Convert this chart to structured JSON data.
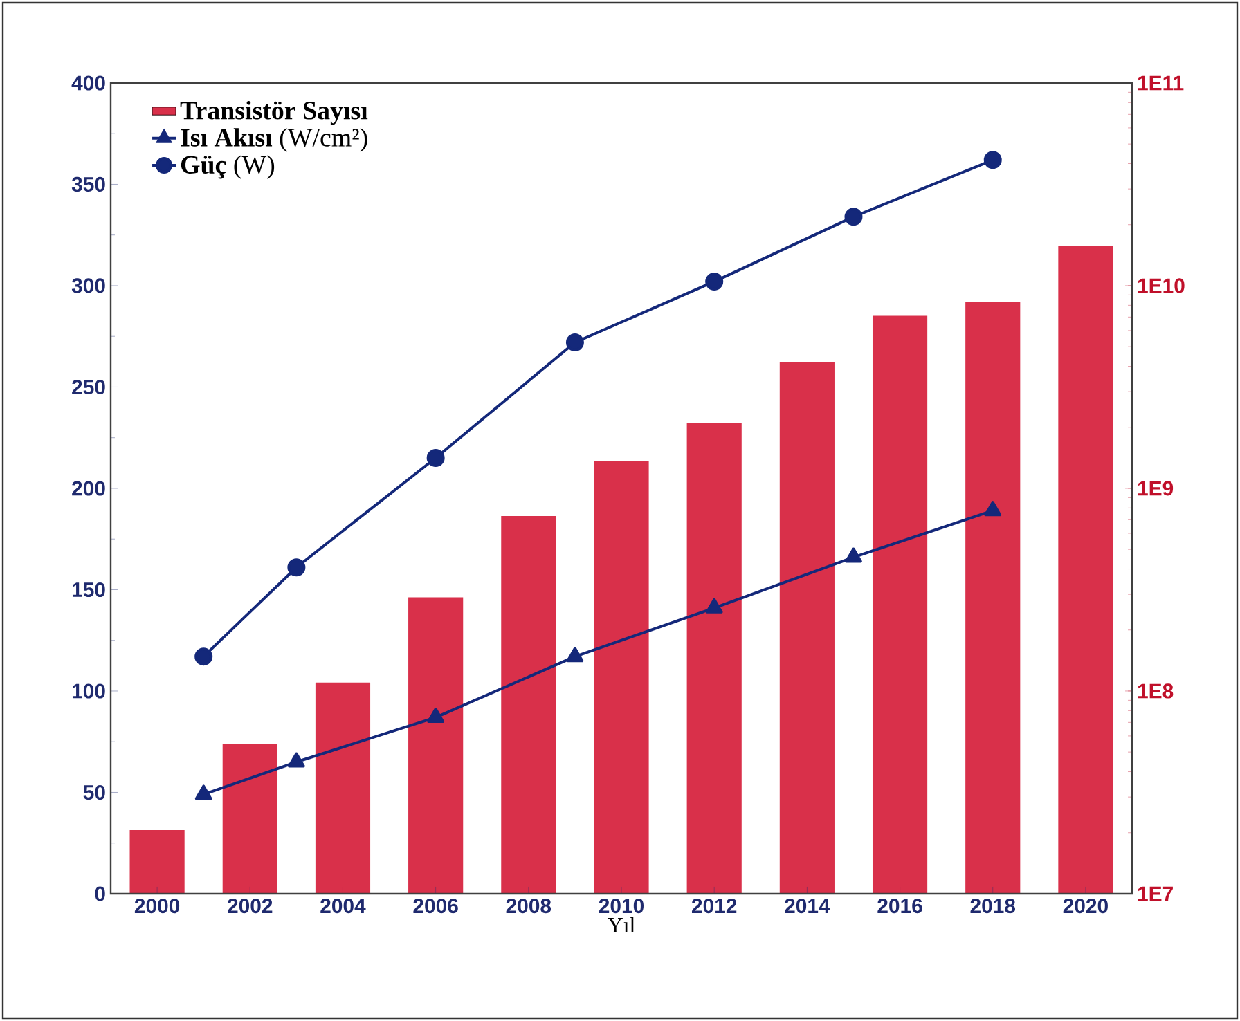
{
  "chart_data": {
    "type": "line",
    "xlabel": "Yıl",
    "xlim": [
      1999,
      2021
    ],
    "xticks": [
      2000,
      2002,
      2004,
      2006,
      2008,
      2010,
      2012,
      2014,
      2016,
      2018,
      2020
    ],
    "ylim": [
      0,
      400
    ],
    "yticks": [
      0,
      50,
      100,
      150,
      200,
      250,
      300,
      350,
      400
    ],
    "y2lim": [
      10000000,
      100000000000
    ],
    "y2ticks": [
      {
        "value": 10000000,
        "label": "1E7"
      },
      {
        "value": 100000000,
        "label": "1E8"
      },
      {
        "value": 1000000000,
        "label": "1E9"
      },
      {
        "value": 10000000000,
        "label": "1E10"
      },
      {
        "value": 100000000000,
        "label": "1E11"
      }
    ],
    "log": "y2",
    "legend": "top left",
    "series": [
      {
        "name": "**Transistör Sayısı**",
        "type": "bar",
        "axis": "y2",
        "color": "#d9304a",
        "x": [
          2000,
          2002,
          2004,
          2006,
          2008,
          2010,
          2012,
          2014,
          2016,
          2018,
          2020
        ],
        "values": [
          20600000,
          55000000,
          110000000,
          290000000,
          730000000,
          1370000000,
          2100000000,
          4200000000,
          7100000000,
          8300000000,
          15700000000
        ]
      },
      {
        "name": "**Isı Akısı** (W/cm²)",
        "color": "#14287a",
        "marker": "triangle",
        "x": [
          2001,
          2003,
          2006,
          2009,
          2012,
          2015,
          2018
        ],
        "values": [
          49,
          65,
          87,
          117,
          141,
          166,
          189
        ]
      },
      {
        "name": "**Güç**      (W)",
        "color": "#14287a",
        "marker": "circle",
        "x": [
          2001,
          2003,
          2006,
          2009,
          2012,
          2015,
          2018
        ],
        "values": [
          117,
          161,
          215,
          272,
          302,
          334,
          362
        ]
      }
    ]
  }
}
